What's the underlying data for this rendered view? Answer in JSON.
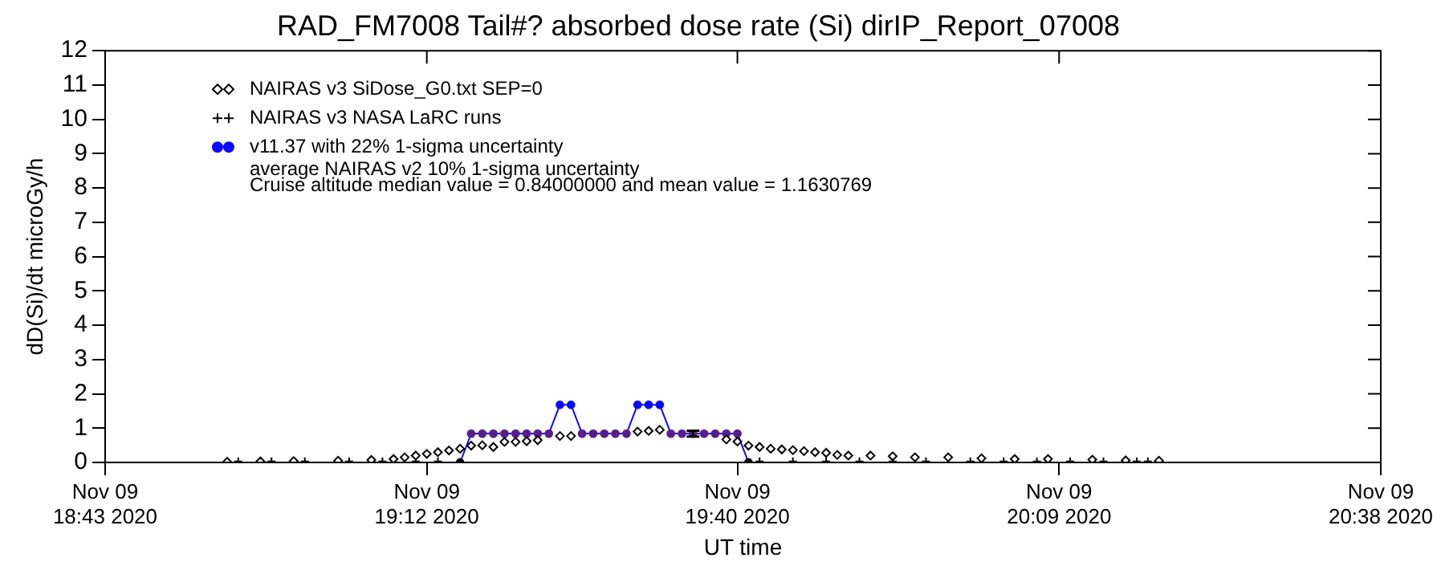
{
  "chart_data": {
    "type": "scatter",
    "title": "RAD_FM7008 Tail#? absorbed dose rate (Si) dirIP_Report_07008",
    "xlabel": "UT time",
    "ylabel": "dD(Si)/dt microGy/h",
    "xlim": [
      "2020-11-09T18:43",
      "2020-11-09T20:38"
    ],
    "xticks": [
      {
        "value": "2020-11-09T18:43",
        "label": "Nov 09\n18:43 2020"
      },
      {
        "value": "2020-11-09T19:12",
        "label": "Nov 09\n19:12 2020"
      },
      {
        "value": "2020-11-09T19:40",
        "label": "Nov 09\n19:40 2020"
      },
      {
        "value": "2020-11-09T20:09",
        "label": "Nov 09\n20:09 2020"
      },
      {
        "value": "2020-11-09T20:38",
        "label": "Nov 09\n20:38 2020"
      }
    ],
    "ylim": [
      0,
      12
    ],
    "yticks": [
      0,
      1,
      2,
      3,
      4,
      5,
      6,
      7,
      8,
      9,
      10,
      11,
      12
    ],
    "grid": false,
    "legend": "top left",
    "annotations": [
      "average NAIRAS v2 10% 1-sigma uncertainty",
      "Cruise altitude median value = 0.84000000 and mean value = 1.1630769"
    ],
    "series": [
      {
        "name": "NAIRAS v3 SiDose_G0.txt SEP=0",
        "type": "scatter",
        "marker": "diamond",
        "color": "#000000",
        "x": [
          "2020-11-09T18:54",
          "2020-11-09T18:57",
          "2020-11-09T19:00",
          "2020-11-09T19:04",
          "2020-11-09T19:07",
          "2020-11-09T19:09",
          "2020-11-09T19:10",
          "2020-11-09T19:11",
          "2020-11-09T19:12",
          "2020-11-09T19:13",
          "2020-11-09T19:14",
          "2020-11-09T19:15",
          "2020-11-09T19:16",
          "2020-11-09T19:17",
          "2020-11-09T19:18",
          "2020-11-09T19:19",
          "2020-11-09T19:20",
          "2020-11-09T19:21",
          "2020-11-09T19:22",
          "2020-11-09T19:24",
          "2020-11-09T19:25",
          "2020-11-09T19:31",
          "2020-11-09T19:32",
          "2020-11-09T19:33",
          "2020-11-09T19:39",
          "2020-11-09T19:40",
          "2020-11-09T19:41",
          "2020-11-09T19:42",
          "2020-11-09T19:43",
          "2020-11-09T19:44",
          "2020-11-09T19:45",
          "2020-11-09T19:46",
          "2020-11-09T19:47",
          "2020-11-09T19:48",
          "2020-11-09T19:49",
          "2020-11-09T19:50",
          "2020-11-09T19:52",
          "2020-11-09T19:54",
          "2020-11-09T19:56",
          "2020-11-09T19:59",
          "2020-11-09T20:02",
          "2020-11-09T20:05",
          "2020-11-09T20:08",
          "2020-11-09T20:12",
          "2020-11-09T20:15",
          "2020-11-09T20:18"
        ],
        "values": [
          0.02,
          0.03,
          0.04,
          0.05,
          0.07,
          0.1,
          0.15,
          0.2,
          0.25,
          0.3,
          0.35,
          0.4,
          0.49,
          0.5,
          0.45,
          0.6,
          0.6,
          0.62,
          0.65,
          0.77,
          0.77,
          0.9,
          0.92,
          0.95,
          0.67,
          0.61,
          0.49,
          0.45,
          0.4,
          0.38,
          0.36,
          0.33,
          0.3,
          0.28,
          0.22,
          0.2,
          0.2,
          0.18,
          0.15,
          0.15,
          0.12,
          0.1,
          0.1,
          0.08,
          0.06,
          0.05
        ]
      },
      {
        "name": "NAIRAS v3 NASA LaRC runs",
        "type": "scatter",
        "marker": "cross",
        "color": "#000000",
        "x": [
          "2020-11-09T18:55",
          "2020-11-09T18:58",
          "2020-11-09T19:01",
          "2020-11-09T19:05",
          "2020-11-09T19:08",
          "2020-11-09T19:11",
          "2020-11-09T19:13",
          "2020-11-09T19:42",
          "2020-11-09T19:45",
          "2020-11-09T19:48",
          "2020-11-09T19:51",
          "2020-11-09T19:54",
          "2020-11-09T19:57",
          "2020-11-09T20:01",
          "2020-11-09T20:04",
          "2020-11-09T20:07",
          "2020-11-09T20:10",
          "2020-11-09T20:13",
          "2020-11-09T20:16",
          "2020-11-09T20:17"
        ],
        "values": [
          0.03,
          0.03,
          0.03,
          0.03,
          0.03,
          0.03,
          0.03,
          0.03,
          0.03,
          0.03,
          0.03,
          0.03,
          0.03,
          0.03,
          0.03,
          0.03,
          0.03,
          0.03,
          0.03,
          0.03
        ]
      },
      {
        "name": "v11.37 with 22% 1-sigma uncertainty",
        "type": "line",
        "marker": "circle",
        "line_style": "solid",
        "color": "#0a0aff",
        "x": [
          "2020-11-09T19:15",
          "2020-11-09T19:16",
          "2020-11-09T19:17",
          "2020-11-09T19:18",
          "2020-11-09T19:19",
          "2020-11-09T19:20",
          "2020-11-09T19:21",
          "2020-11-09T19:22",
          "2020-11-09T19:23",
          "2020-11-09T19:24",
          "2020-11-09T19:25",
          "2020-11-09T19:26",
          "2020-11-09T19:27",
          "2020-11-09T19:28",
          "2020-11-09T19:29",
          "2020-11-09T19:30",
          "2020-11-09T19:31",
          "2020-11-09T19:32",
          "2020-11-09T19:33",
          "2020-11-09T19:34",
          "2020-11-09T19:35",
          "2020-11-09T19:36",
          "2020-11-09T19:37",
          "2020-11-09T19:38",
          "2020-11-09T19:39",
          "2020-11-09T19:40",
          "2020-11-09T19:41"
        ],
        "values": [
          0,
          0.84,
          0.84,
          0.84,
          0.84,
          0.84,
          0.84,
          0.84,
          0.84,
          1.68,
          1.68,
          0.84,
          0.84,
          0.84,
          0.84,
          0.84,
          1.68,
          1.68,
          1.68,
          0.84,
          0.84,
          0.84,
          0.84,
          0.84,
          0.84,
          0.84,
          0
        ],
        "colors": [
          "#000000",
          "#5a1e8c",
          "#5a1e8c",
          "#5a1e8c",
          "#5a1e8c",
          "#5a1e8c",
          "#5a1e8c",
          "#5a1e8c",
          "#5a1e8c",
          "#0a0aff",
          "#0a0aff",
          "#5a1e8c",
          "#5a1e8c",
          "#5a1e8c",
          "#5a1e8c",
          "#5a1e8c",
          "#0a0aff",
          "#0a0aff",
          "#0a0aff",
          "#5a1e8c",
          "#5a1e8c",
          "#5a1e8c",
          "#5a1e8c",
          "#5a1e8c",
          "#5a1e8c",
          "#5a1e8c",
          "#000000"
        ],
        "errors": [
          null,
          null,
          null,
          null,
          null,
          null,
          null,
          null,
          null,
          null,
          null,
          null,
          null,
          null,
          null,
          null,
          null,
          null,
          null,
          null,
          null,
          0.084,
          null,
          null,
          null,
          null,
          null
        ]
      }
    ]
  }
}
